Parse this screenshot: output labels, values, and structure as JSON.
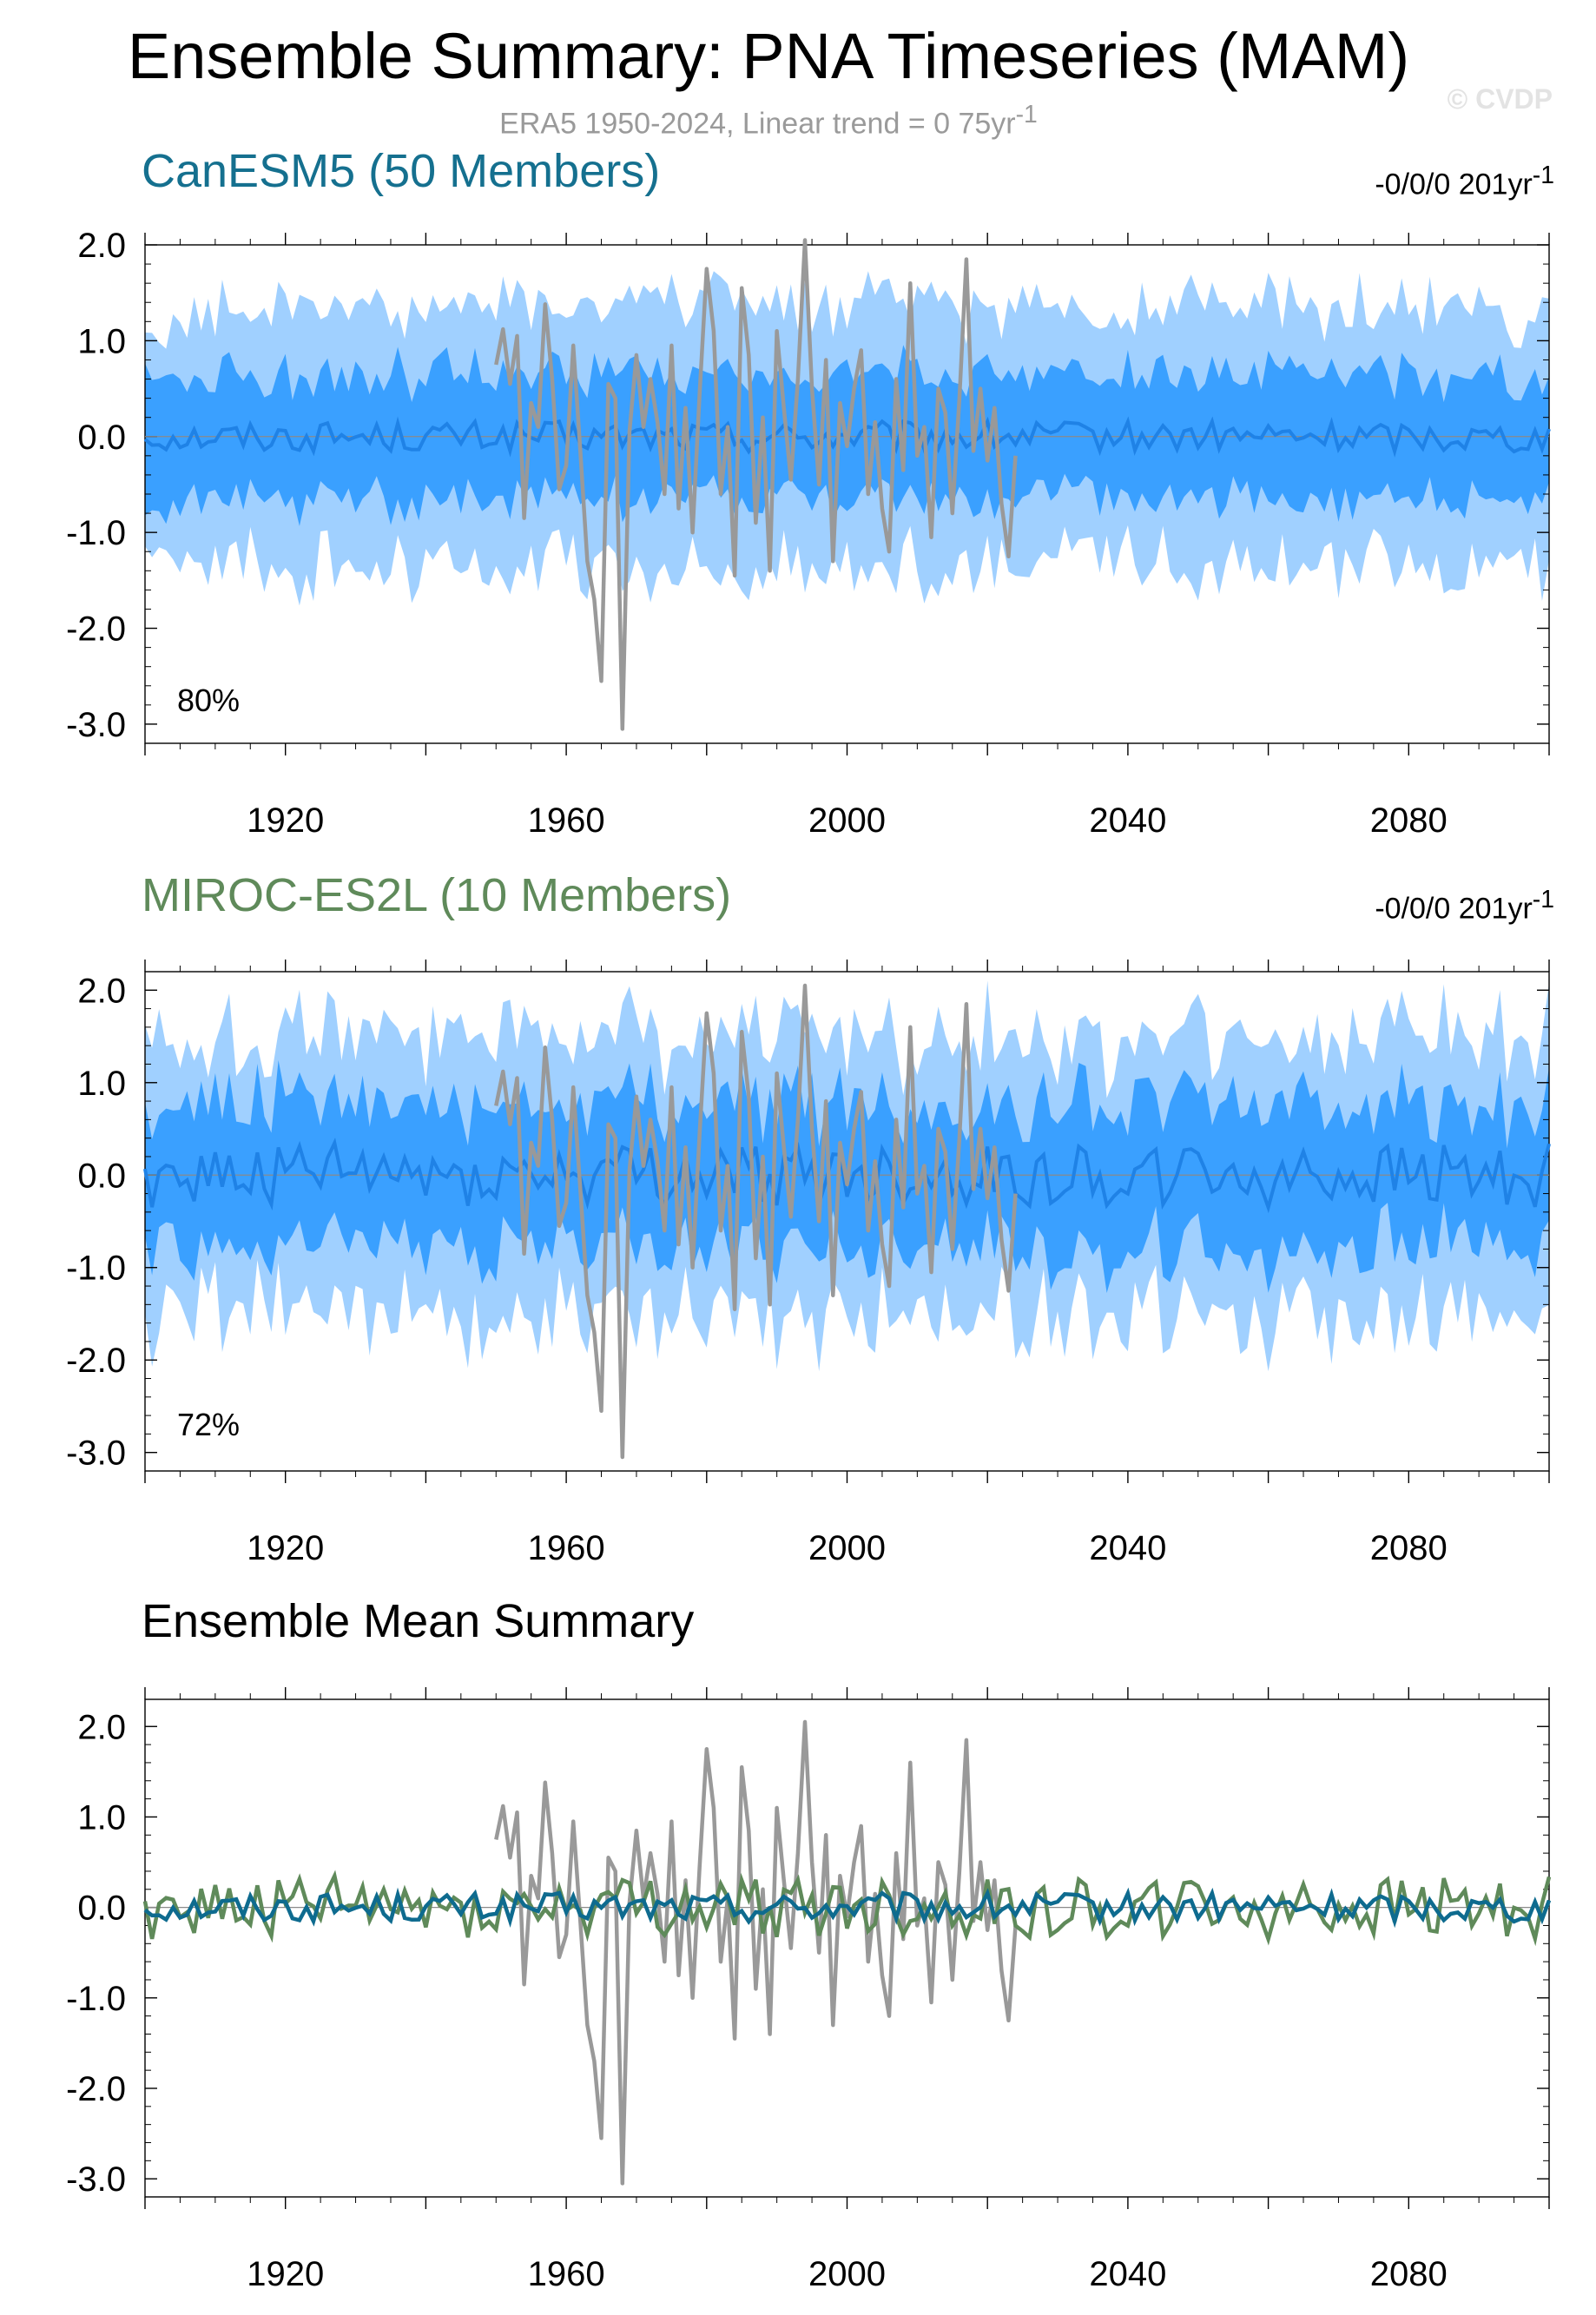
{
  "title": "Ensemble Summary: PNA Timeseries (MAM)",
  "subtitle": "ERA5 1950-2024, Linear trend = 0 75yr",
  "subtitle_sup": "-1",
  "watermark": "© CVDP",
  "colors": {
    "outer_band": "#a0d0ff",
    "inner_band": "#3aa0ff",
    "member_mean": "#1f82e6",
    "observations": "#999999",
    "canesm5": "#0e6b8f",
    "miroc": "#5f8a5a",
    "zero_line": "#8a8a8a"
  },
  "panels": [
    {
      "title": "CanESM5 (50 Members)",
      "title_color": "#15708f",
      "trend": "-0/0/0 201yr",
      "trend_sup": "-1",
      "percent": "80%"
    },
    {
      "title": "MIROC-ES2L (10 Members)",
      "title_color": "#5f8a5a",
      "trend": "-0/0/0 201yr",
      "trend_sup": "-1",
      "percent": "72%"
    },
    {
      "title": "Ensemble Mean Summary",
      "title_color": "#000000"
    }
  ],
  "chart_data": [
    {
      "type": "area",
      "title": "CanESM5 (50 Members)",
      "xlim": [
        1900,
        2100
      ],
      "ylim": [
        -3.2,
        2.0
      ],
      "x_ticks": [
        "1920",
        "1960",
        "2000",
        "2040",
        "2080"
      ],
      "y_ticks": [
        "2.0",
        "1.0",
        "0.0",
        "-1.0",
        "-2.0",
        "-3.0"
      ],
      "x_start": 1900,
      "x_step": 1,
      "ensemble_mean_amplitude": 0.16,
      "inner_band_halfwidth": 0.62,
      "outer_band_halfwidth": 1.3,
      "annotation": "80%"
    },
    {
      "type": "area",
      "title": "MIROC-ES2L (10 Members)",
      "xlim": [
        1900,
        2100
      ],
      "ylim": [
        -3.2,
        2.2
      ],
      "x_ticks": [
        "1920",
        "1960",
        "2000",
        "2040",
        "2080"
      ],
      "y_ticks": [
        "2.0",
        "1.0",
        "0.0",
        "-1.0",
        "-2.0",
        "-3.0"
      ],
      "x_start": 1900,
      "x_step": 1,
      "ensemble_mean_amplitude": 0.35,
      "inner_band_halfwidth": 0.75,
      "outer_band_halfwidth": 1.45,
      "annotation": "72%"
    },
    {
      "type": "line",
      "title": "Ensemble Mean Summary",
      "xlim": [
        1900,
        2100
      ],
      "ylim": [
        -3.2,
        2.3
      ],
      "x_ticks": [
        "1920",
        "1960",
        "2000",
        "2040",
        "2080"
      ],
      "y_ticks": [
        "2.0",
        "1.0",
        "0.0",
        "-1.0",
        "-2.0",
        "-3.0"
      ]
    }
  ],
  "observations": {
    "name": "ERA5",
    "x_start": 1950,
    "values": [
      0.75,
      1.12,
      0.55,
      1.05,
      -0.85,
      0.35,
      0.1,
      1.38,
      0.6,
      -0.55,
      -0.3,
      0.95,
      -0.15,
      -1.3,
      -1.7,
      -2.55,
      0.55,
      0.4,
      -3.05,
      0.05,
      0.85,
      0.1,
      0.6,
      0.15,
      -0.6,
      0.95,
      -0.75,
      0.3,
      -1.0,
      0.45,
      1.75,
      1.1,
      -0.6,
      0.1,
      -1.45,
      1.55,
      0.85,
      -0.9,
      0.2,
      -1.4,
      1.1,
      0.3,
      -0.45,
      0.6,
      2.05,
      0.5,
      -0.5,
      0.8,
      -1.3,
      0.35,
      -0.1,
      0.5,
      0.9,
      -0.6,
      0.15,
      -0.75,
      -1.2,
      0.6,
      -0.35,
      1.6,
      -0.2,
      0.1,
      -1.05,
      0.5,
      0.25,
      -0.8,
      0.4,
      1.85,
      -0.15,
      0.5,
      -0.25,
      0.3,
      -0.7,
      -1.25,
      -0.2
    ]
  }
}
